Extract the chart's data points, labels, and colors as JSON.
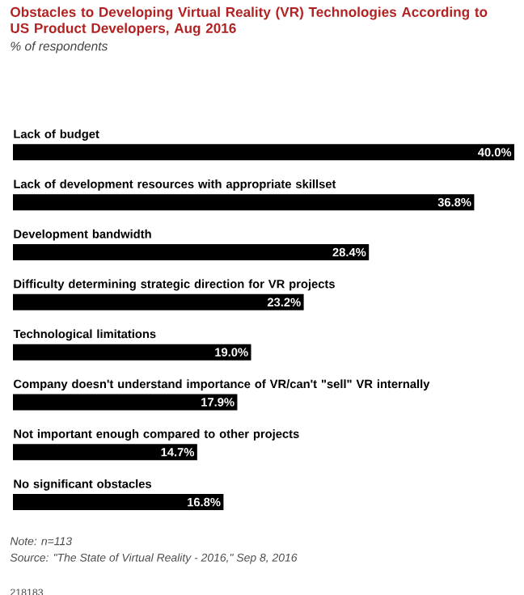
{
  "chart_data": {
    "type": "bar",
    "orientation": "horizontal",
    "title": "Obstacles to Developing Virtual Reality (VR) Technologies According to US Product Developers, Aug 2016",
    "subtitle": "% of respondents",
    "categories": [
      "Lack of budget",
      "Lack of development resources with appropriate skillset",
      "Development bandwidth",
      "Difficulty determining strategic direction for VR projects",
      "Technological limitations",
      "Company doesn't understand importance of VR/can't \"sell\" VR internally",
      "Not important enough compared to other projects",
      "No significant obstacles"
    ],
    "values": [
      40.0,
      36.8,
      28.4,
      23.2,
      19.0,
      17.9,
      14.7,
      16.8
    ],
    "value_labels": [
      "40.0%",
      "36.8%",
      "28.4%",
      "23.2%",
      "19.0%",
      "17.9%",
      "14.7%",
      "16.8%"
    ],
    "color": "#000000",
    "xlim": [
      0,
      40
    ],
    "annotations": [
      "Note: n=113",
      "Source: \"The State of Virtual Reality - 2016,\" Sep 8, 2016",
      "218183"
    ]
  }
}
